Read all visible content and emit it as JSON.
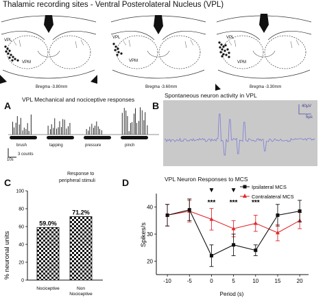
{
  "figure_title": "Thalamic recording sites -  Ventral Posterolateral Nucleus (VPL)",
  "atlas": {
    "slices": [
      {
        "bregma": "Bregma -3.80mm",
        "vpl_label": "VPL",
        "vpm_label": "VPM"
      },
      {
        "bregma": "Bregma -3.60mm",
        "vpl_label": "VPL",
        "vpm_label": "VPM"
      },
      {
        "bregma": "Bregma -3.30mm",
        "vpl_label": "VPL",
        "vpm_label": "VPM"
      }
    ]
  },
  "panel_a": {
    "letter": "A",
    "title": "VPL  Mechanical and nociceptive responses",
    "stimuli": [
      "brush",
      "tapping",
      "pressure",
      "pinch"
    ],
    "scale_time": "10s",
    "scale_counts": "3 counts"
  },
  "panel_b": {
    "letter": "B",
    "title": "Spontaneous neuron activity in VPL",
    "scale_voltage": "40µV",
    "scale_time": "5µs",
    "trace_color": "#7b7bd6"
  },
  "panel_c": {
    "letter": "C",
    "title_line1": "Response to",
    "title_line2": "peripheral stimuli",
    "ylabel": "% neuronal units"
  },
  "panel_d": {
    "letter": "D",
    "title": "VPL Neuron Responses to MCS",
    "xlabel": "Period (s)",
    "ylabel": "Spikes/s",
    "marks": {
      "arrow": "▼",
      "stars": "***"
    }
  },
  "chart_data": [
    {
      "type": "bar",
      "title": "Response to peripheral stimuli",
      "xlabel": "",
      "ylabel": "% neuronal units",
      "categories": [
        "Nociceptive",
        "Non Nociceptive"
      ],
      "values": [
        59.0,
        71.2
      ],
      "value_labels": [
        "59.0%",
        "71.2%"
      ],
      "ylim": [
        0,
        100
      ],
      "yticks": [
        0,
        20,
        40,
        60,
        80,
        100
      ],
      "fill": "checkerboard"
    },
    {
      "type": "line",
      "title": "VPL Neuron Responses to MCS",
      "xlabel": "Period (s)",
      "ylabel": "Spikes/s",
      "x": [
        -10,
        -5,
        0,
        5,
        10,
        15,
        20
      ],
      "xlim": [
        -12.5,
        22
      ],
      "ylim": [
        15,
        45
      ],
      "yticks": [
        20,
        30,
        40
      ],
      "legend_position": "top-right",
      "significance": {
        "arrows_at": [
          0,
          5
        ],
        "stars_at": [
          0,
          5,
          10
        ],
        "label": "***"
      },
      "series": [
        {
          "name": "Ipsilateral MCS",
          "color": "#111111",
          "marker": "square",
          "values": [
            37,
            39,
            22,
            26,
            24,
            37,
            38.5
          ],
          "errors": [
            4,
            4,
            4,
            4,
            2,
            4,
            4
          ]
        },
        {
          "name": "Contralateral MCS",
          "color": "#e0262b",
          "marker": "triangle",
          "values": [
            37,
            38.5,
            35.5,
            32,
            34,
            30.5,
            35
          ],
          "errors": [
            4,
            4,
            4,
            3,
            3,
            3,
            3
          ]
        }
      ]
    }
  ]
}
